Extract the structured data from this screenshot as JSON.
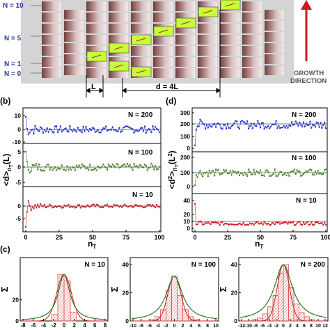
{
  "top_panel": {
    "n_labels": [
      "N = 10",
      "N = 5",
      "N = 1",
      "N = 0"
    ],
    "dim_l": "L",
    "dim_d": "d = 4L",
    "growth": [
      "GROWTH",
      "DIRECTION"
    ]
  },
  "panel_b": {
    "label": "(b)",
    "ylabel": "<d>",
    "ylabel_sub": "n",
    "ylabel_subsub": "T",
    "ylabel_unit": "(L)",
    "xlabel": "n",
    "xlabel_sub": "T",
    "xticks": [
      "0",
      "25",
      "50",
      "75",
      "100"
    ],
    "rows": [
      {
        "n_label": "N = 200",
        "yticks": [
          "10",
          "0",
          "-10"
        ]
      },
      {
        "n_label": "N = 100",
        "yticks": [
          "5",
          "0",
          "-5"
        ]
      },
      {
        "n_label": "N = 10",
        "yticks": [
          "0",
          "-5"
        ]
      }
    ]
  },
  "panel_d": {
    "label": "(d)",
    "ylabel": "<d",
    "ylabel_sup": "2",
    "ylabel_rest": ">",
    "ylabel_sub": "n",
    "ylabel_subsub": "T",
    "ylabel_unit": "(L",
    "ylabel_unit_sup": "2",
    "ylabel_unit_end": ")",
    "xlabel": "n",
    "xlabel_sub": "T",
    "xticks": [
      "0",
      "25",
      "50",
      "75",
      "100"
    ],
    "rows": [
      {
        "n_label": "N = 200",
        "yticks": [
          "300",
          "200",
          "100",
          "0"
        ]
      },
      {
        "n_label": "N = 100",
        "yticks": [
          "200",
          "100",
          "0"
        ]
      },
      {
        "n_label": "N = 10",
        "yticks": [
          "40",
          "20",
          "10",
          "0"
        ]
      }
    ]
  },
  "panel_c": {
    "label": "(c)",
    "ylabel": "Σ",
    "hists": [
      {
        "n_label": "N = 10",
        "yticks": [
          "20",
          "0"
        ],
        "xticks": [
          "-8",
          "-6",
          "-4",
          "-2",
          "0",
          "2",
          "4",
          "6",
          "8"
        ]
      },
      {
        "n_label": "N = 100",
        "yticks": [
          "40",
          "20",
          "0"
        ],
        "xticks": [
          "-10",
          "-8",
          "-6",
          "-4",
          "-2",
          "0",
          "2",
          "4",
          "6",
          "8",
          "10"
        ]
      },
      {
        "n_label": "N = 200",
        "yticks": [
          "40",
          "20",
          "0"
        ],
        "xticks": [
          "-12",
          "-10",
          "-8",
          "-6",
          "-4",
          "-2",
          "0",
          "2",
          "4",
          "6",
          "8",
          "10",
          "12"
        ]
      }
    ]
  },
  "colors": {
    "blue": "#2233cc",
    "green": "#4a8a2a",
    "red": "#cc1f1f",
    "block_green": "#c6ff3a"
  }
}
